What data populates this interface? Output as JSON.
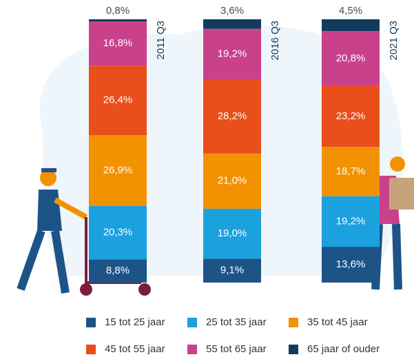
{
  "chart_data": {
    "type": "stacked-bar",
    "categories": [
      "2011 Q3",
      "2016 Q3",
      "2021 Q3"
    ],
    "series": [
      {
        "name": "15 tot 25 jaar",
        "color": "#1d5487",
        "values": [
          8.8,
          9.1,
          13.6
        ],
        "value_labels": [
          "8,8%",
          "9,1%",
          "13,6%"
        ]
      },
      {
        "name": "25 tot 35 jaar",
        "color": "#1ba1de",
        "values": [
          20.3,
          19.0,
          19.2
        ],
        "value_labels": [
          "20,3%",
          "19,0%",
          "19,2%"
        ]
      },
      {
        "name": "35 tot 45 jaar",
        "color": "#f39200",
        "values": [
          26.9,
          21.0,
          18.7
        ],
        "value_labels": [
          "26,9%",
          "21,0%",
          "18,7%"
        ]
      },
      {
        "name": "45 tot 55 jaar",
        "color": "#e94e1b",
        "values": [
          26.4,
          28.2,
          23.2
        ],
        "value_labels": [
          "26,4%",
          "28,2%",
          "23,2%"
        ]
      },
      {
        "name": "55 tot 65 jaar",
        "color": "#c9418b",
        "values": [
          16.8,
          19.2,
          20.8
        ],
        "value_labels": [
          "16,8%",
          "19,2%",
          "20,8%"
        ]
      },
      {
        "name": "65 jaar of ouder",
        "color": "#133c5c",
        "values": [
          0.8,
          3.6,
          4.5
        ],
        "value_labels": [
          "0,8%",
          "3,6%",
          "4,5%"
        ]
      }
    ]
  }
}
